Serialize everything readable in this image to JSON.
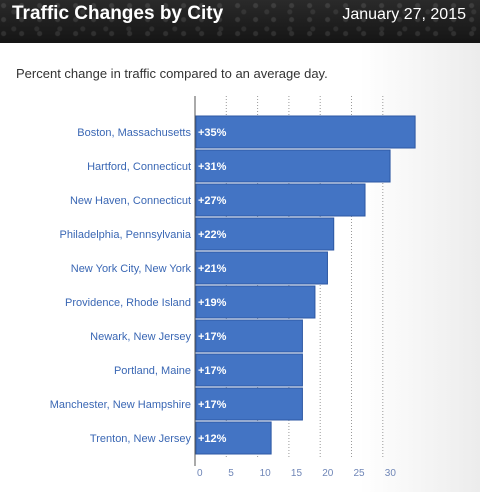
{
  "header": {
    "title": "Traffic Changes by City",
    "date": "January 27, 2015"
  },
  "chart_data": {
    "type": "bar",
    "orientation": "horizontal",
    "title": "Traffic Changes by City",
    "subtitle": "Percent change in traffic compared to an average day.",
    "categories": [
      "Boston, Massachusetts",
      "Hartford, Connecticut",
      "New Haven, Connecticut",
      "Philadelphia, Pennsylvania",
      "New York City, New York",
      "Providence, Rhode Island",
      "Newark, New Jersey",
      "Portland, Maine",
      "Manchester, New Hampshire",
      "Trenton, New Jersey"
    ],
    "values": [
      35,
      31,
      27,
      22,
      21,
      19,
      17,
      17,
      17,
      12
    ],
    "value_labels": [
      "+35%",
      "+31%",
      "+27%",
      "+22%",
      "+21%",
      "+19%",
      "+17%",
      "+17%",
      "+17%",
      "+12%"
    ],
    "xticks": [
      0,
      5,
      10,
      15,
      20,
      25,
      30
    ],
    "xlim": [
      0,
      35
    ],
    "grid": true,
    "colors": {
      "bar": "#4374c4",
      "category_label": "#3a67b4"
    }
  }
}
